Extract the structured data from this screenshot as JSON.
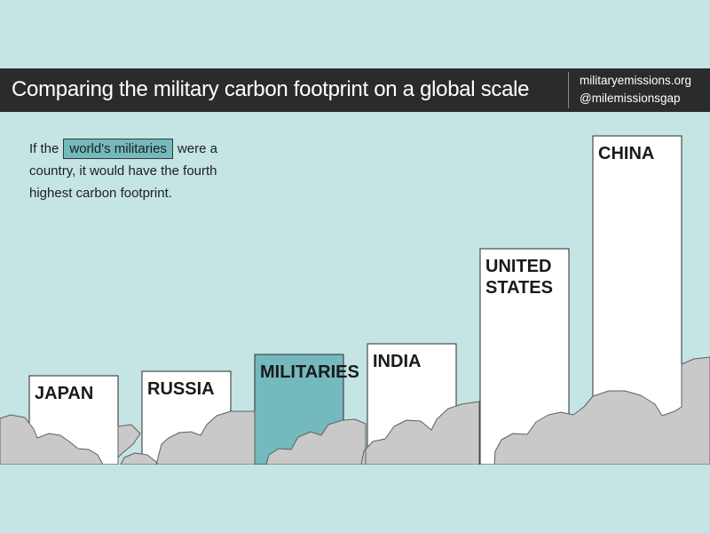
{
  "header": {
    "title": "Comparing the military carbon footprint on a global scale",
    "link_site": "militaryemissions.org",
    "link_handle": "@milemissionsgap"
  },
  "intro": {
    "before": "If the",
    "highlight": "world's militaries",
    "after": "were a country, it would have the fourth highest carbon footprint."
  },
  "colors": {
    "background": "#c5e4e4",
    "header": "#2a2b2d",
    "bar": "#ffffff",
    "highlight_bar": "#74b9bd",
    "clouds": "#c9c9c9"
  },
  "chart_data": {
    "type": "bar",
    "title": "",
    "xlabel": "",
    "ylabel": "",
    "categories": [
      "JAPAN",
      "RUSSIA",
      "MILITARIES",
      "INDIA",
      "UNITED STATES",
      "CHINA"
    ],
    "label_lines": [
      [
        "JAPAN"
      ],
      [
        "RUSSIA"
      ],
      [
        "MILITARIES"
      ],
      [
        "INDIA"
      ],
      [
        "UNITED",
        "STATES"
      ],
      [
        "CHINA"
      ]
    ],
    "values": [
      100,
      105,
      124,
      136,
      243,
      370
    ],
    "highlighted": "MILITARIES",
    "ylim": [
      0,
      370
    ],
    "grid": false,
    "legend": "none"
  }
}
